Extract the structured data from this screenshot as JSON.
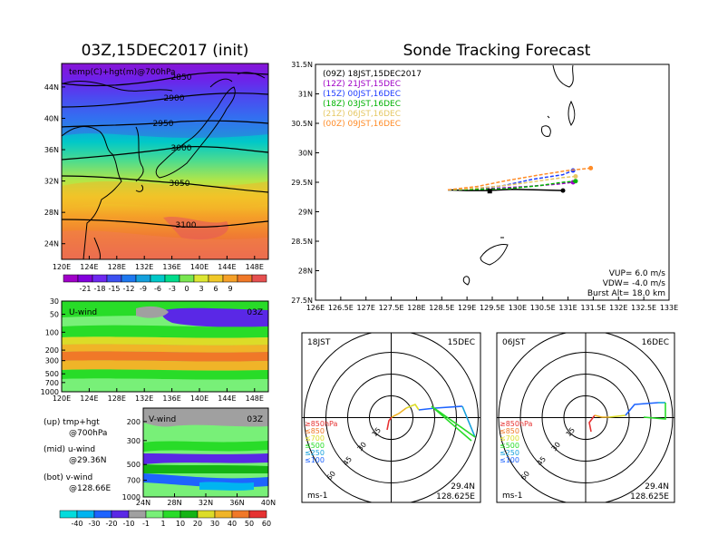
{
  "colors": {
    "track": [
      "#000000",
      "#a000c8",
      "#1e3cff",
      "#00b400",
      "#e6c864",
      "#ff8c28"
    ],
    "temp_scale": [
      "#a000c8",
      "#8200dc",
      "#6e28f0",
      "#3c50f0",
      "#1e78f0",
      "#14a0dc",
      "#00c8c8",
      "#00dc8c",
      "#78e650",
      "#dce632",
      "#f0c828",
      "#f5a028",
      "#f07828",
      "#e65050"
    ],
    "wind_scale": [
      "#00dcdc",
      "#00b4f0",
      "#1e64ff",
      "#5a28e6",
      "#a0a0a0",
      "#78f078",
      "#28dc28",
      "#14b414",
      "#dcdc28",
      "#f0b428",
      "#f07828",
      "#e63232"
    ]
  },
  "map_panel": {
    "title": "03Z,15DEC2017 (init)",
    "variable_label": "temp(C)+hgt(m)@700hPa",
    "lat_ticks": [
      "44N",
      "40N",
      "36N",
      "32N",
      "28N",
      "24N"
    ],
    "lon_ticks": [
      "120E",
      "124E",
      "128E",
      "132E",
      "136E",
      "140E",
      "144E",
      "148E"
    ],
    "contour_labels": [
      "2850",
      "2900",
      "2950",
      "3000",
      "3050",
      "3100"
    ],
    "colorbar_labels": [
      "-21",
      "-18",
      "-15",
      "-12",
      "-9",
      "-6",
      "-3",
      "0",
      "3",
      "6",
      "9"
    ]
  },
  "uwind_panel": {
    "label": "U-wind",
    "time": "03Z",
    "p_ticks": [
      "30",
      "50",
      "100",
      "200",
      "300",
      "500",
      "700",
      "1000"
    ],
    "lon_ticks": [
      "120E",
      "124E",
      "128E",
      "132E",
      "136E",
      "140E",
      "144E",
      "148E"
    ]
  },
  "vwind_panel": {
    "label": "V-wind",
    "time": "03Z",
    "p_ticks": [
      "200",
      "300",
      "500",
      "700",
      "1000"
    ],
    "lat_ticks": [
      "24N",
      "28N",
      "32N",
      "36N",
      "40N"
    ],
    "colorbar_labels": [
      "-40",
      "-30",
      "-20",
      "-10",
      "-1",
      "1",
      "10",
      "20",
      "30",
      "40",
      "50",
      "60"
    ]
  },
  "legend_text": {
    "up_1": "(up) tmp+hgt",
    "up_2": "@700hPa",
    "mid_1": "(mid) u-wind",
    "mid_2": "@29.36N",
    "bot_1": "(bot) v-wind",
    "bot_2": "@128.66E"
  },
  "tracking_panel": {
    "title": "Sonde Tracking Forecast",
    "legend": [
      "(09Z)  18JST,15DEC2017",
      "(12Z)  21JST,15DEC",
      "(15Z)  00JST,16DEC",
      "(18Z)  03JST,16DEC",
      "(21Z)  06JST,16DEC",
      "(00Z)  09JST,16DEC"
    ],
    "lat_ticks": [
      "31.5N",
      "31N",
      "30.5N",
      "30N",
      "29.5N",
      "29N",
      "28.5N",
      "28N",
      "27.5N"
    ],
    "lon_ticks": [
      "126E",
      "126.5E",
      "127E",
      "127.5E",
      "128E",
      "128.5E",
      "129E",
      "129.5E",
      "130E",
      "130.5E",
      "131E",
      "131.5E",
      "132E",
      "132.5E",
      "133E"
    ],
    "params": [
      "VUP=  6.0  m/s",
      "VDW= -4.0  m/s",
      "Burst Alt= 18.0  km"
    ]
  },
  "hodograph_left": {
    "time": "18JST",
    "date": "15DEC",
    "lat": "29.4N",
    "lon": "128.625E",
    "unit": "ms-1",
    "ring_labels": [
      "15",
      "30",
      "45",
      "60"
    ],
    "levels": [
      "≥850hPa",
      "≤850",
      "≤700",
      "≤500",
      "≤250",
      "≤100"
    ]
  },
  "hodograph_right": {
    "time": "06JST",
    "date": "16DEC",
    "lat": "29.4N",
    "lon": "128.625E",
    "unit": "ms-1",
    "ring_labels": [
      "15",
      "30",
      "45",
      "60"
    ],
    "levels": [
      "≥850hPa",
      "≤850",
      "≤700",
      "≤500",
      "≤250",
      "≤100"
    ]
  },
  "chart_data": [
    {
      "type": "heatmap",
      "title": "03Z,15DEC2017 (init)",
      "xlabel": "",
      "ylabel": "",
      "x_range": [
        120,
        150
      ],
      "y_range": [
        22,
        47
      ],
      "colorbar": [
        -21,
        -18,
        -15,
        -12,
        -9,
        -6,
        -3,
        0,
        3,
        6,
        9
      ],
      "contours": [
        2850,
        2900,
        2950,
        3000,
        3050,
        3100
      ]
    },
    {
      "type": "heatmap",
      "title": "U-wind 03Z",
      "x_range": [
        120,
        150
      ],
      "y_ticks_hPa": [
        30,
        50,
        100,
        200,
        300,
        500,
        700,
        1000
      ],
      "latitude": "29.36N"
    },
    {
      "type": "heatmap",
      "title": "V-wind 03Z",
      "x_range": [
        24,
        40
      ],
      "y_ticks_hPa": [
        200,
        300,
        500,
        700,
        1000
      ],
      "longitude": "128.66E",
      "colorbar": [
        -40,
        -30,
        -20,
        -10,
        -1,
        1,
        10,
        20,
        30,
        40,
        50,
        60
      ]
    },
    {
      "type": "line",
      "title": "Sonde Tracking Forecast",
      "xlim": [
        126,
        133
      ],
      "ylim": [
        27.5,
        31.5
      ],
      "series": [
        {
          "name": "(09Z)  18JST,15DEC2017",
          "x": [
            128.62,
            129.0,
            129.4,
            129.9,
            130.4,
            130.9
          ],
          "y": [
            29.37,
            29.36,
            29.36,
            29.38,
            29.37,
            29.36
          ]
        },
        {
          "name": "(12Z)  21JST,15DEC",
          "x": [
            128.62,
            129.1,
            129.6,
            130.2,
            130.8,
            131.1
          ],
          "y": [
            29.37,
            29.38,
            29.4,
            29.43,
            29.47,
            29.5
          ]
        },
        {
          "name": "(15Z)  00JST,16DEC",
          "x": [
            128.62,
            129.1,
            129.7,
            130.3,
            130.9,
            131.1
          ],
          "y": [
            29.37,
            29.39,
            29.44,
            29.55,
            29.63,
            29.7
          ]
        },
        {
          "name": "(18Z)  03JST,16DEC",
          "x": [
            128.62,
            129.2,
            129.8,
            130.4,
            130.9,
            131.15
          ],
          "y": [
            29.37,
            29.38,
            29.39,
            29.44,
            29.5,
            29.52
          ]
        },
        {
          "name": "(21Z)  06JST,16DEC",
          "x": [
            128.62,
            129.2,
            129.8,
            130.4,
            130.9,
            131.15
          ],
          "y": [
            29.37,
            29.4,
            29.45,
            29.52,
            29.58,
            29.6
          ]
        },
        {
          "name": "(00Z)  09JST,16DEC",
          "x": [
            128.62,
            129.2,
            129.8,
            130.4,
            131.0,
            131.45
          ],
          "y": [
            29.37,
            29.43,
            29.53,
            29.62,
            29.7,
            29.74
          ]
        }
      ]
    }
  ]
}
